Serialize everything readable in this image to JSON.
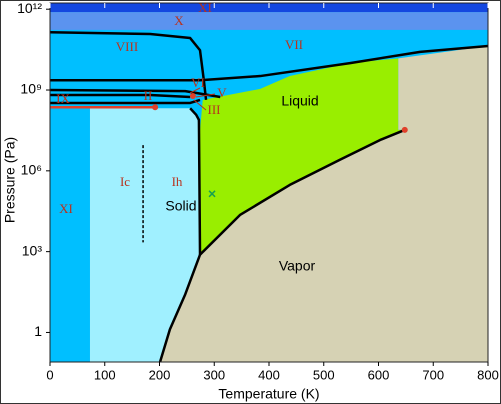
{
  "chart_data": {
    "type": "phase-diagram",
    "x_label": "Temperature (K)",
    "y_label": "Pressure (Pa)",
    "xlim": [
      0,
      800
    ],
    "ylim": [
      0.08,
      1700000000000.0
    ],
    "ylog": true,
    "xticks": [
      0,
      100,
      200,
      300,
      400,
      500,
      600,
      700,
      800
    ],
    "yticks": [
      1,
      {
        "value": 1000,
        "label": "10³"
      },
      {
        "value": 1000000,
        "label": "10⁶"
      },
      {
        "value": 1000000000,
        "label": "10⁹"
      },
      {
        "value": 1000000000000,
        "label": "10¹²"
      }
    ],
    "background": "#00bfff",
    "regions": [
      {
        "color": "#1447e0",
        "x": [
          0,
          800,
          800,
          0
        ],
        "y": [
          1700000000000.0,
          1700000000000.0,
          780000000000.0,
          780000000000.0
        ]
      },
      {
        "color": "#5b93ef",
        "x": [
          0,
          800,
          800,
          0
        ],
        "y": [
          780000000000.0,
          780000000000.0,
          170000000000.0,
          170000000000.0
        ]
      },
      {
        "color": "#d6d2b4",
        "x": [
          201,
          219,
          247,
          274,
          347,
          438,
          530,
          603,
          648,
          636,
          636,
          800,
          800
        ],
        "y": [
          0.08,
          1.3,
          26,
          770,
          23000.0,
          300000.0,
          2600000.0,
          14000000.0,
          33000000.0,
          33000000.0,
          15000000000.0,
          43000000000.0,
          0.08
        ]
      },
      {
        "color": "#99ee00",
        "x": [
          274,
          274,
          279,
          384,
          438,
          548,
          636,
          636,
          648,
          603,
          530,
          438,
          347
        ],
        "y": [
          770,
          33000000.0,
          430000000.0,
          1100000000.0,
          3300000000.0,
          10000000000.0,
          15000000000.0,
          33000000.0,
          33000000.0,
          14000000.0,
          2600000.0,
          300000.0,
          23000.0
        ]
      },
      {
        "color": "#a0f0ff",
        "x": [
          73,
          256,
          267,
          274,
          274,
          247,
          219,
          201,
          73
        ],
        "y": [
          210000000.0,
          210000000.0,
          120000000.0,
          33000000.0,
          770,
          26,
          1.3,
          0.08,
          0.08
        ]
      }
    ],
    "boundaries": [
      {
        "color": "#000000",
        "x": [
          0,
          183,
          256,
          274,
          281,
          285
        ],
        "y": [
          140000000000.0,
          120000000000.0,
          85000000000.0,
          30000000000.0,
          2300000000.0,
          430000000.0
        ]
      },
      {
        "color": "#000000",
        "x": [
          0,
          274,
          384,
          548,
          676,
          800
        ],
        "y": [
          2300000000.0,
          2300000000.0,
          3300000000.0,
          10000000000.0,
          26000000000.0,
          43000000000.0
        ]
      },
      {
        "color": "#000000",
        "x": [
          0,
          247,
          311
        ],
        "y": [
          1000000000.0,
          910000000.0,
          550000000.0
        ]
      },
      {
        "color": "#000000",
        "x": [
          0,
          183,
          256
        ],
        "y": [
          650000000.0,
          650000000.0,
          550000000.0
        ]
      },
      {
        "color": "#000000",
        "x": [
          0,
          174,
          256,
          274
        ],
        "y": [
          330000000.0,
          330000000.0,
          330000000.0,
          430000000.0
        ]
      },
      {
        "color": "#000000",
        "x": [
          256,
          267,
          272,
          274
        ],
        "y": [
          210000000.0,
          120000000.0,
          78000000.0,
          770
        ]
      },
      {
        "color": "#000000",
        "x": [
          201,
          219,
          247,
          274,
          347,
          438,
          530,
          603,
          648
        ],
        "y": [
          0.08,
          1.3,
          26,
          770,
          23000.0,
          300000.0,
          2600000.0,
          14000000.0,
          33000000.0
        ]
      },
      {
        "color": "#e0402a",
        "x": [
          0,
          192
        ],
        "y": [
          230000000.0,
          230000000.0
        ]
      },
      {
        "color": "#000000",
        "dash": true,
        "x": [
          170,
          170
        ],
        "y": [
          9000000.0,
          2200
        ]
      }
    ],
    "points": [
      {
        "x": 192,
        "y": 230000000.0,
        "color": "#e0402a",
        "marker": "dot"
      },
      {
        "x": 648,
        "y": 33000000.0,
        "color": "#e0402a",
        "marker": "dot"
      },
      {
        "x": 261,
        "y": 600000000.0,
        "color": "#e0402a",
        "marker": "dot"
      },
      {
        "x": 296,
        "y": 140000.0,
        "color": "#18a050",
        "marker": "x"
      }
    ],
    "annotations": [
      "XI",
      "X",
      "VIII",
      "VII",
      "IX",
      "II",
      "VI",
      "V",
      "III",
      "Liquid",
      "Ic",
      "Ih",
      "Solid",
      "Vapor",
      "XI"
    ]
  }
}
